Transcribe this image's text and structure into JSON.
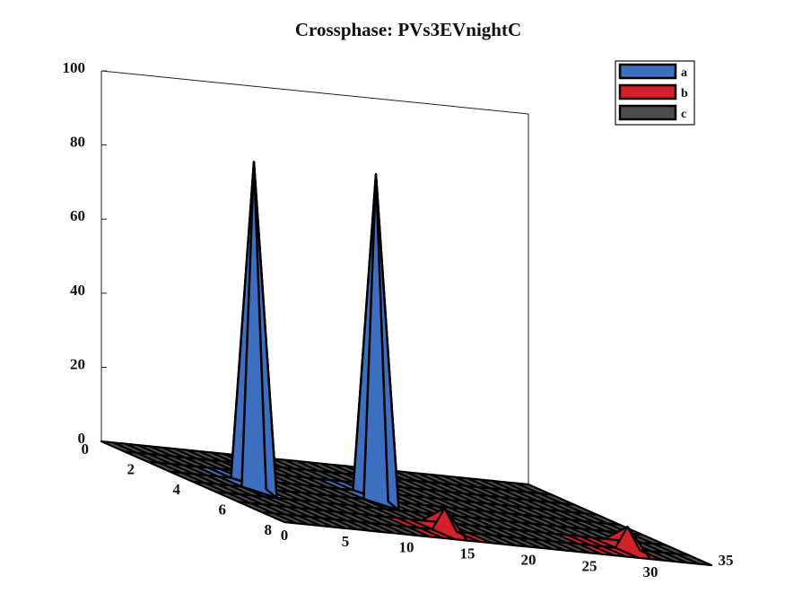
{
  "chart_data": {
    "type": "surface3d",
    "title": "Crossphase: PVs3EVnightC",
    "xlabel": "",
    "ylabel": "",
    "zlabel": "",
    "xlim": [
      0,
      35
    ],
    "ylim": [
      0,
      8
    ],
    "zlim": [
      0,
      100
    ],
    "x_ticks": [
      0,
      5,
      10,
      15,
      20,
      25,
      30,
      35
    ],
    "y_ticks": [
      0,
      2,
      4,
      6,
      8
    ],
    "z_ticks": [
      0,
      20,
      40,
      60,
      80,
      100
    ],
    "grid": false,
    "legend_position": "top-right",
    "series": [
      {
        "name": "a",
        "color": "#3c6fbf",
        "peaks": [
          {
            "x": 5,
            "y": 4,
            "z": 88
          },
          {
            "x": 15,
            "y": 4,
            "z": 88
          }
        ]
      },
      {
        "name": "b",
        "color": "#d42028",
        "peaks": [
          {
            "x": 15,
            "y": 7,
            "z": 6
          },
          {
            "x": 30,
            "y": 7,
            "z": 6
          }
        ]
      },
      {
        "name": "c",
        "color": "#4d4d4d",
        "peaks": []
      }
    ]
  }
}
